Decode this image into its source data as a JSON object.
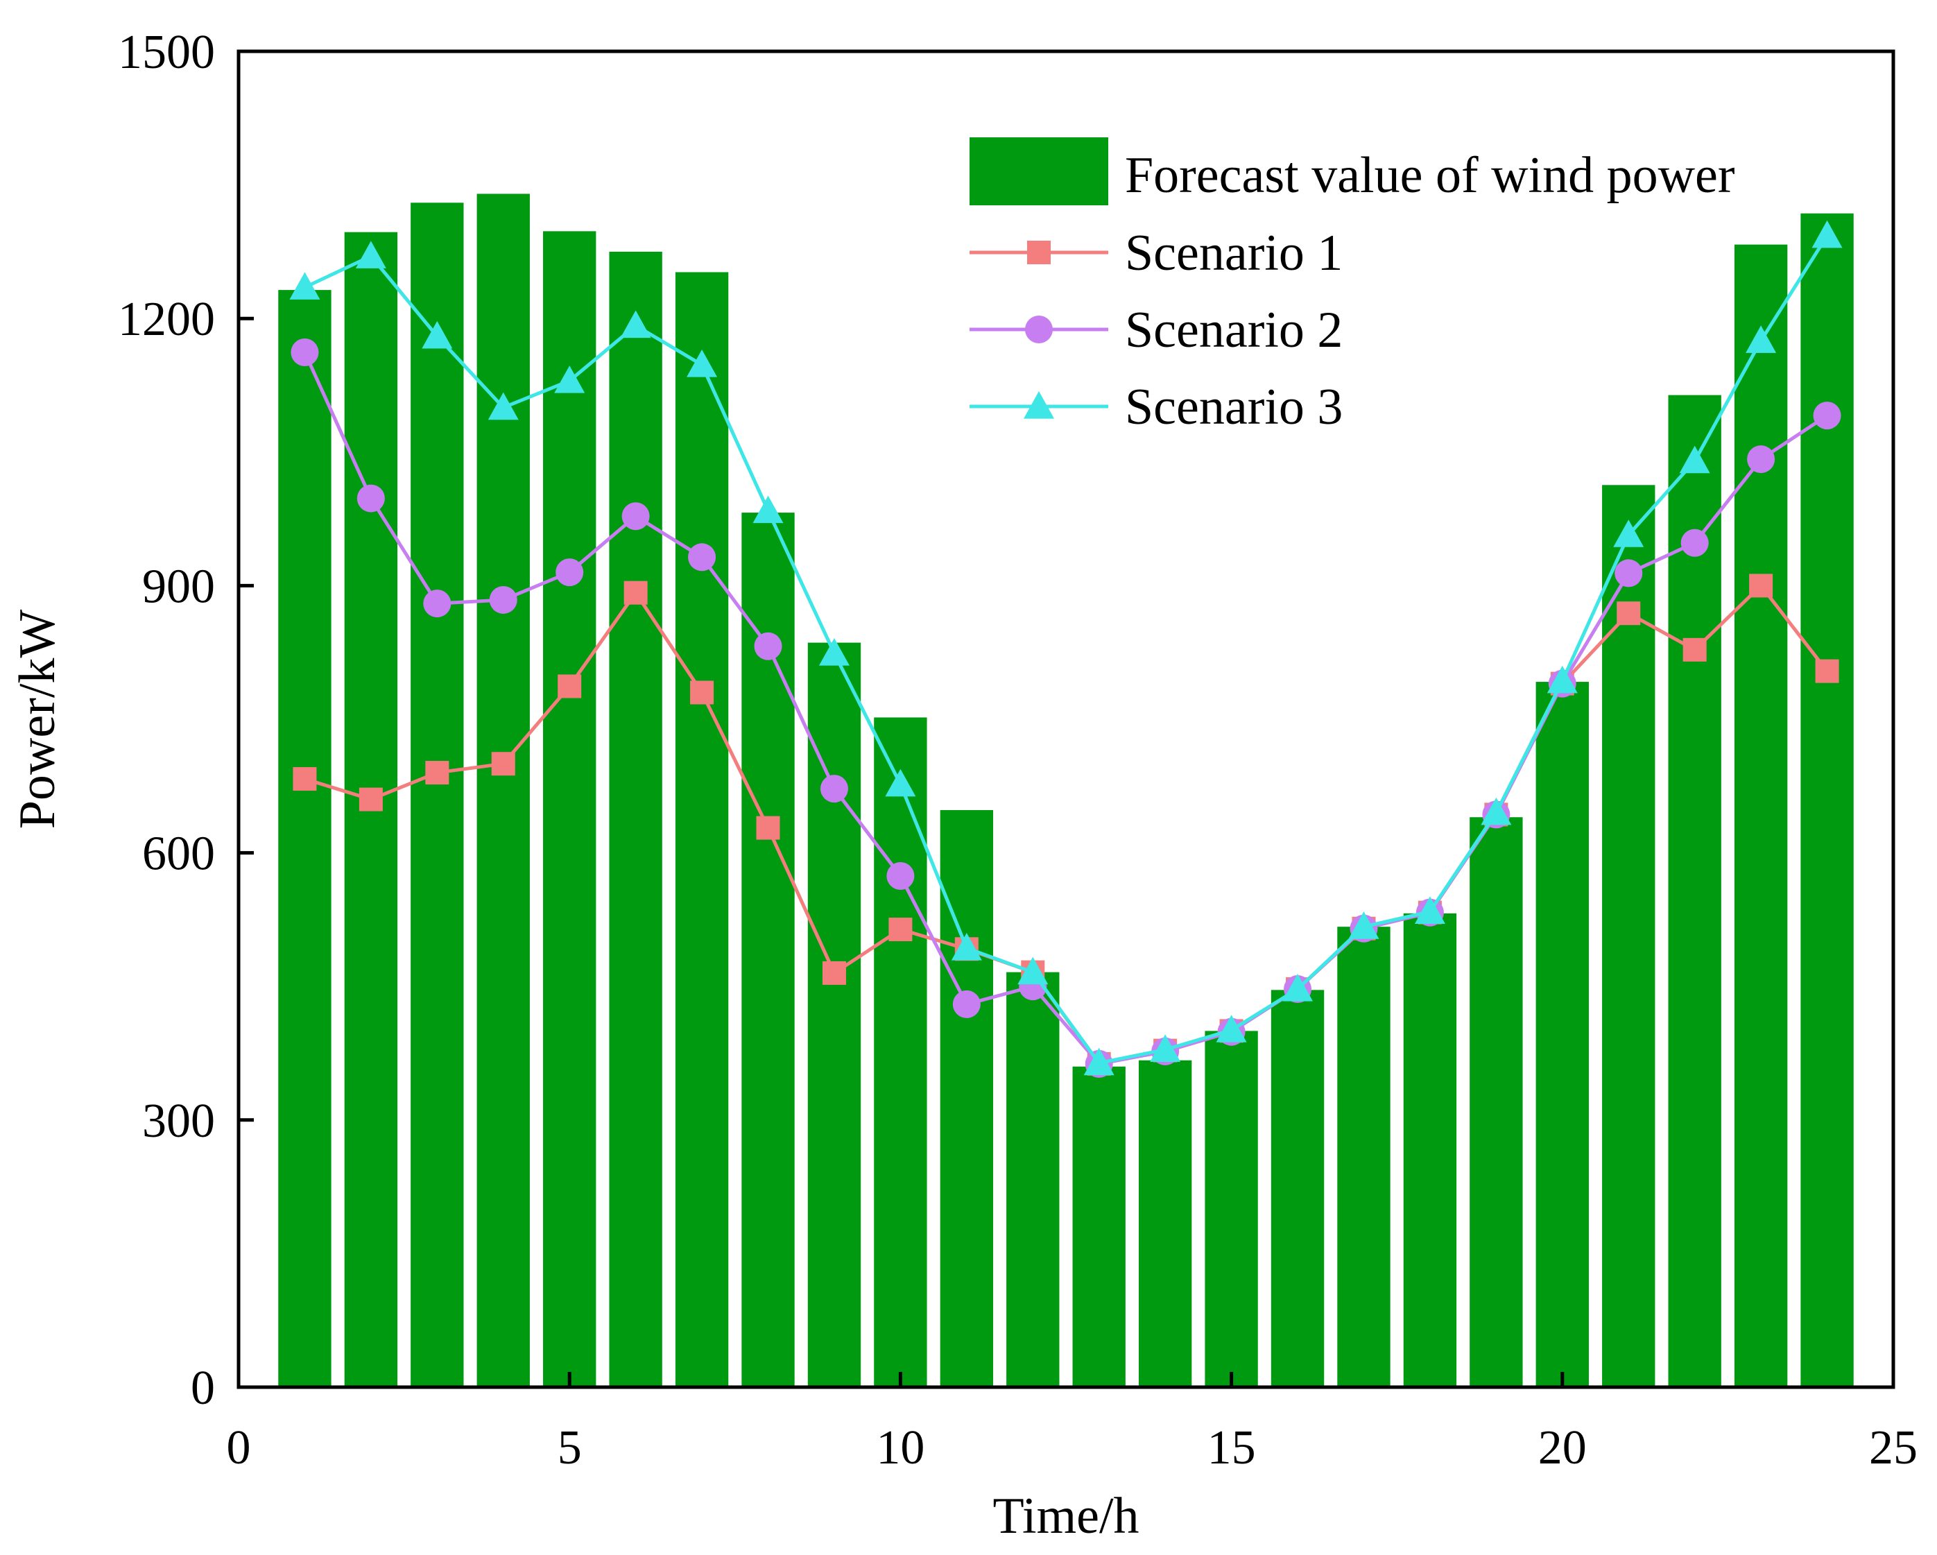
{
  "chart_data": {
    "type": "bar",
    "title": "",
    "xlabel": "Time/h",
    "ylabel": "Power/kW",
    "xlim": [
      0,
      25
    ],
    "ylim": [
      0,
      1500
    ],
    "xticks": [
      0,
      5,
      10,
      15,
      20,
      25
    ],
    "yticks": [
      0,
      300,
      600,
      900,
      1200,
      1500
    ],
    "grid": false,
    "legend_position": "top-right",
    "x": [
      1,
      2,
      3,
      4,
      5,
      6,
      7,
      8,
      9,
      10,
      11,
      12,
      13,
      14,
      15,
      16,
      17,
      18,
      19,
      20,
      21,
      22,
      23,
      24
    ],
    "bars": {
      "name": "Forecast value of wind power",
      "color": "#009a11",
      "values": [
        1232,
        1297,
        1330,
        1340,
        1298,
        1275,
        1252,
        982,
        836,
        752,
        648,
        466,
        360,
        367,
        400,
        446,
        517,
        532,
        640,
        792,
        1013,
        1114,
        1283,
        1318
      ]
    },
    "series": [
      {
        "name": "Scenario 1",
        "color": "#f47d7d",
        "marker": "square",
        "values": [
          683,
          660,
          690,
          700,
          787,
          892,
          780,
          628,
          465,
          514,
          492,
          466,
          363,
          378,
          400,
          447,
          515,
          533,
          643,
          790,
          869,
          828,
          900,
          804
        ]
      },
      {
        "name": "Scenario 2",
        "color": "#c77ef0",
        "marker": "circle",
        "values": [
          1162,
          998,
          880,
          884,
          915,
          978,
          932,
          832,
          672,
          574,
          430,
          450,
          363,
          377,
          399,
          447,
          515,
          533,
          643,
          790,
          914,
          948,
          1042,
          1091
        ]
      },
      {
        "name": "Scenario 3",
        "color": "#3fe6e6",
        "marker": "triangle",
        "values": [
          1235,
          1270,
          1180,
          1100,
          1130,
          1192,
          1148,
          984,
          824,
          677,
          493,
          466,
          364,
          379,
          401,
          447,
          517,
          534,
          645,
          793,
          957,
          1040,
          1175,
          1293
        ]
      }
    ]
  }
}
